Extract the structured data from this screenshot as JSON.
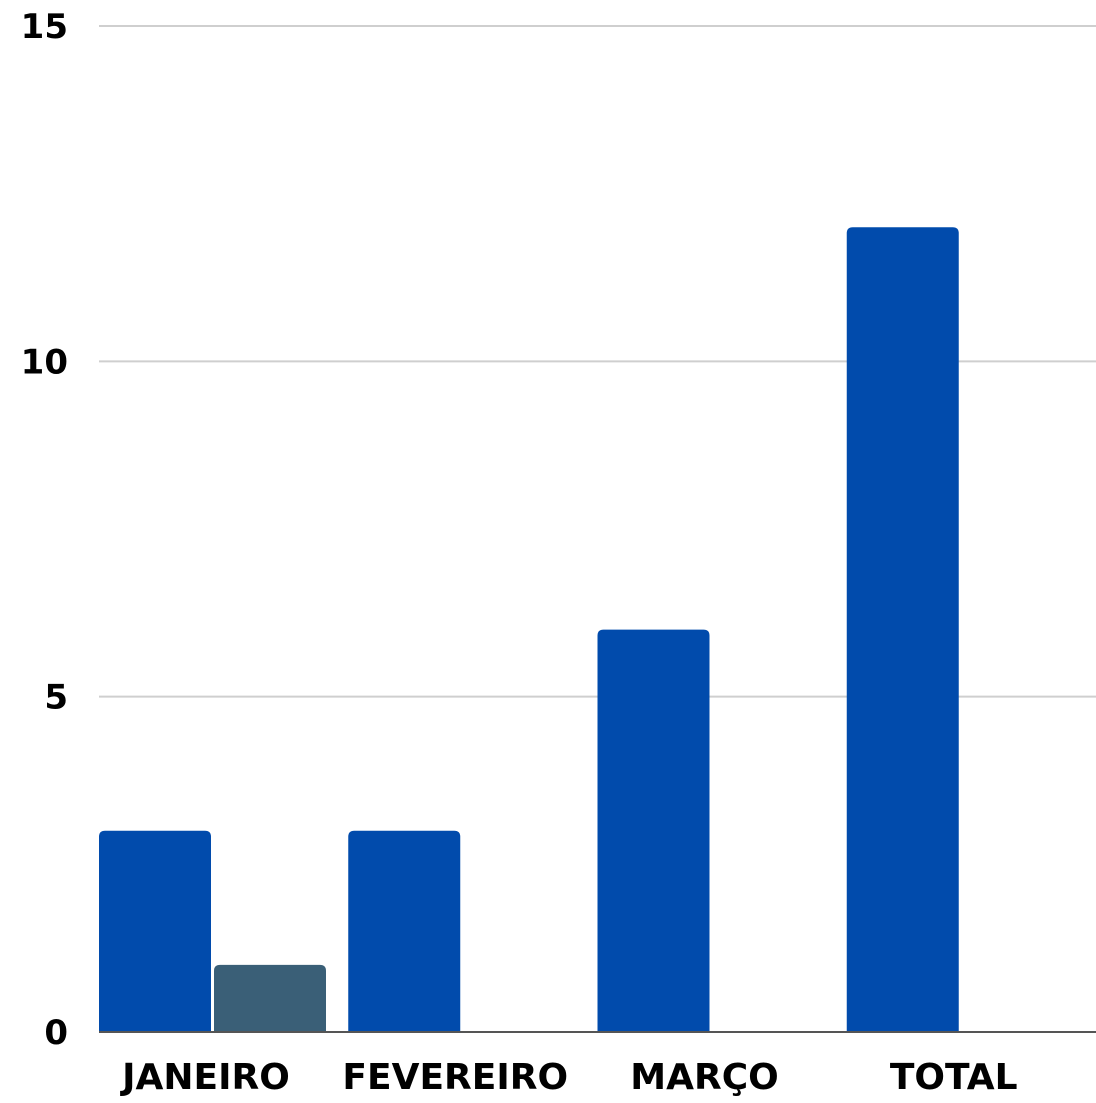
{
  "chart_data": {
    "type": "bar",
    "title": "",
    "xlabel": "",
    "ylabel": "",
    "ylim": [
      0,
      15
    ],
    "yticks": [
      0,
      5,
      10,
      15
    ],
    "grid": true,
    "legend": "none",
    "categories": [
      "JANEIRO",
      "FEVEREIRO",
      "MARÇO",
      "TOTAL"
    ],
    "series": [
      {
        "values": [
          3,
          3,
          6,
          12
        ],
        "color": "#014BAC"
      },
      {
        "values": [
          1,
          0,
          0,
          0
        ],
        "color": "#3A5F77"
      }
    ]
  }
}
